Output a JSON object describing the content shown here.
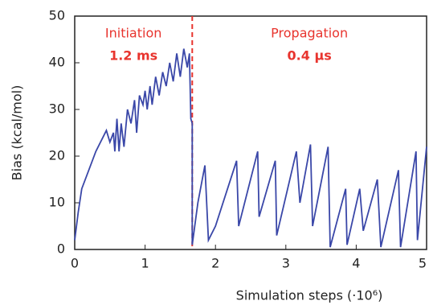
{
  "chart_data": {
    "type": "line",
    "x_label": "Simulation steps (·10⁶)",
    "y_label": "Bias (kcal/mol)",
    "annotations": [
      "Initiation",
      "1.2 ms",
      "Propagation",
      "0.4 µs"
    ],
    "annotation_color": "#e8342e",
    "phase_boundary_x": 1.67,
    "xlim": [
      0,
      5
    ],
    "ylim": [
      0,
      50
    ],
    "xticks": [
      0,
      1,
      2,
      3,
      4,
      5
    ],
    "yticks": [
      0,
      10,
      20,
      30,
      40,
      50
    ],
    "series": [
      {
        "name": "Bias",
        "color": "#3a47a8",
        "x": [
          0,
          0.05,
          0.1,
          0.2,
          0.3,
          0.4,
          0.45,
          0.5,
          0.55,
          0.57,
          0.6,
          0.63,
          0.66,
          0.7,
          0.75,
          0.8,
          0.85,
          0.88,
          0.92,
          0.97,
          1.0,
          1.03,
          1.07,
          1.1,
          1.15,
          1.2,
          1.25,
          1.3,
          1.35,
          1.4,
          1.45,
          1.5,
          1.55,
          1.6,
          1.63,
          1.65,
          1.67,
          1.67,
          1.75,
          1.85,
          1.9,
          2.0,
          2.3,
          2.33,
          2.6,
          2.62,
          2.85,
          2.87,
          3.15,
          3.2,
          3.35,
          3.38,
          3.6,
          3.63,
          3.85,
          3.87,
          4.05,
          4.1,
          4.3,
          4.35,
          4.6,
          4.63,
          4.85,
          4.87,
          5.0
        ],
        "values": [
          2,
          8,
          13,
          17,
          21,
          24,
          25.5,
          23,
          25,
          21,
          28,
          21,
          27,
          22,
          30,
          27,
          32,
          25,
          33,
          31,
          34,
          30,
          35,
          31,
          37,
          33,
          38,
          35,
          40,
          36,
          42,
          37,
          43,
          39,
          42,
          28,
          27,
          1,
          10,
          18,
          2,
          5,
          19,
          5,
          21,
          7,
          19,
          3,
          21,
          10,
          22.5,
          5,
          22,
          0.5,
          13,
          1,
          13,
          4,
          15,
          0.5,
          17,
          0.5,
          21,
          2,
          22
        ]
      }
    ]
  }
}
